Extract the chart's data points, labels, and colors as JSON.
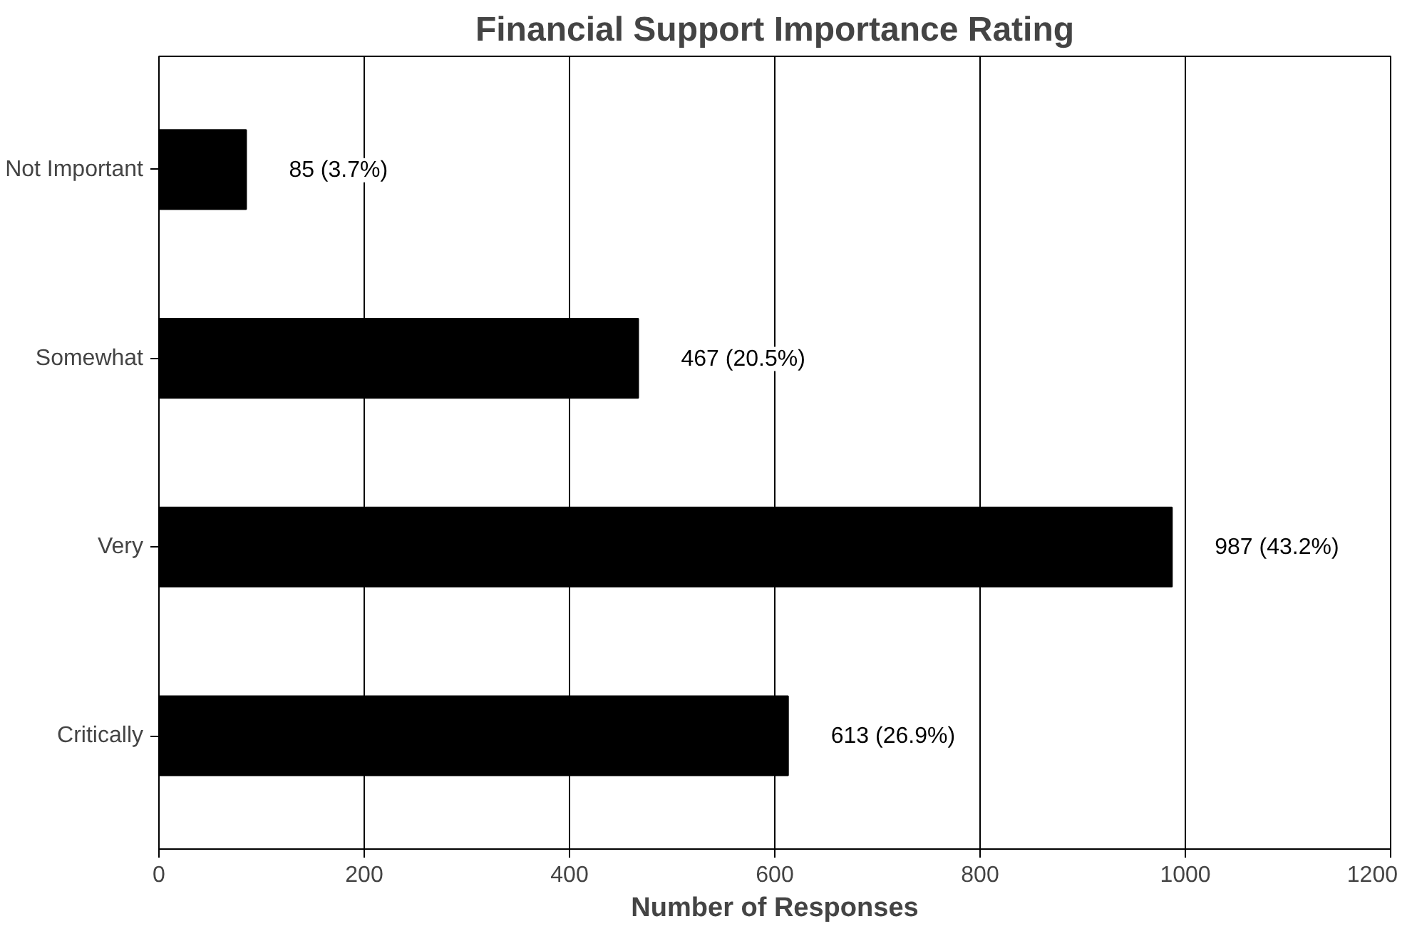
{
  "chart_data": {
    "type": "bar",
    "orientation": "horizontal",
    "title": "Financial Support Importance Rating",
    "xlabel": "Number of Responses",
    "categories": [
      "Not Important",
      "Somewhat",
      "Very",
      "Critically"
    ],
    "values": [
      85,
      467,
      987,
      613
    ],
    "value_labels": [
      "85 (3.7%)",
      "467 (20.5%)",
      "987 (43.2%)",
      "613 (26.9%)"
    ],
    "color": "#000000",
    "xlim": [
      0,
      1200
    ],
    "xticks": [
      0,
      200,
      400,
      600,
      800,
      1000,
      1200
    ],
    "grid": "x"
  }
}
